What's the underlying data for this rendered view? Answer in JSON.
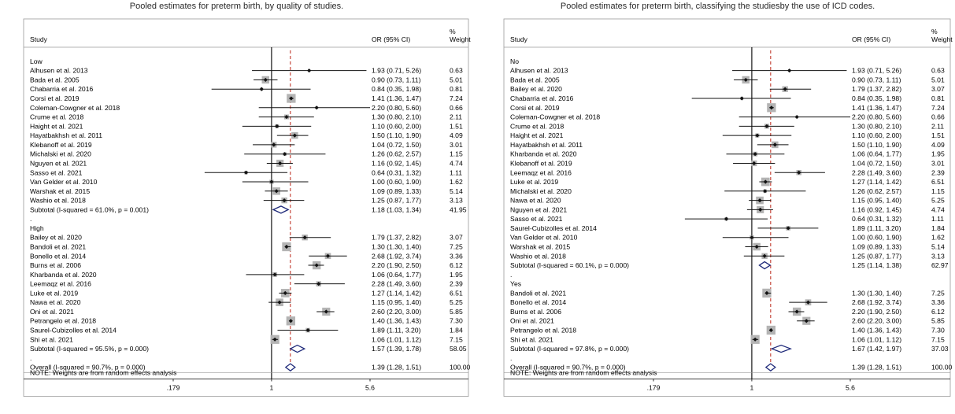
{
  "chart_data": [
    {
      "type": "forest",
      "title": "Pooled estimates for preterm birth, by quality of studies.",
      "columns": {
        "study": "Study",
        "effect": "OR (95% CI)",
        "weight_line1": "%",
        "weight_line2": "Weight"
      },
      "x_scale": "log",
      "x_ticks": [
        {
          "value": 0.179,
          "label": ".179"
        },
        {
          "value": 1,
          "label": "1"
        },
        {
          "value": 5.6,
          "label": "5.6"
        }
      ],
      "xlim": [
        0.179,
        5.6
      ],
      "reference_line": 1,
      "pooled_line": 1.39,
      "note": "NOTE: Weights are from random effects analysis",
      "rows": [
        {
          "kind": "group",
          "label": "Low"
        },
        {
          "kind": "study",
          "label": "Alhusen et al. 2013",
          "or": 1.93,
          "lo": 0.71,
          "hi": 5.26,
          "text": "1.93 (0.71, 5.26)",
          "weight": 0.63,
          "wtext": "0.63"
        },
        {
          "kind": "study",
          "label": "Bada et al. 2005",
          "or": 0.9,
          "lo": 0.73,
          "hi": 1.11,
          "text": "0.90 (0.73, 1.11)",
          "weight": 5.01,
          "wtext": "5.01"
        },
        {
          "kind": "study",
          "label": "Chabarria et al. 2016",
          "or": 0.84,
          "lo": 0.35,
          "hi": 1.98,
          "text": "0.84 (0.35, 1.98)",
          "weight": 0.81,
          "wtext": "0.81"
        },
        {
          "kind": "study",
          "label": "Corsi et al. 2019",
          "or": 1.41,
          "lo": 1.36,
          "hi": 1.47,
          "text": "1.41 (1.36, 1.47)",
          "weight": 7.24,
          "wtext": "7.24"
        },
        {
          "kind": "study",
          "label": "Coleman-Cowgner et al. 2018",
          "or": 2.2,
          "lo": 0.8,
          "hi": 5.6,
          "text": "2.20 (0.80, 5.60)",
          "weight": 0.66,
          "wtext": "0.66"
        },
        {
          "kind": "study",
          "label": "Crume et al. 2018",
          "or": 1.3,
          "lo": 0.8,
          "hi": 2.1,
          "text": "1.30 (0.80, 2.10)",
          "weight": 2.11,
          "wtext": "2.11"
        },
        {
          "kind": "study",
          "label": "Haight et al. 2021",
          "or": 1.1,
          "lo": 0.6,
          "hi": 2.0,
          "text": "1.10 (0.60, 2.00)",
          "weight": 1.51,
          "wtext": "1.51"
        },
        {
          "kind": "study",
          "label": "Hayatbakhsh et al. 2011",
          "or": 1.5,
          "lo": 1.1,
          "hi": 1.9,
          "text": "1.50 (1.10, 1.90)",
          "weight": 4.09,
          "wtext": "4.09"
        },
        {
          "kind": "study",
          "label": "Klebanoff et al. 2019",
          "or": 1.04,
          "lo": 0.72,
          "hi": 1.5,
          "text": "1.04 (0.72, 1.50)",
          "weight": 3.01,
          "wtext": "3.01"
        },
        {
          "kind": "study",
          "label": "Michalski et al. 2020",
          "or": 1.26,
          "lo": 0.62,
          "hi": 2.57,
          "text": "1.26 (0.62, 2.57)",
          "weight": 1.15,
          "wtext": "1.15"
        },
        {
          "kind": "study",
          "label": "Nguyen et al. 2021",
          "or": 1.16,
          "lo": 0.92,
          "hi": 1.45,
          "text": "1.16 (0.92, 1.45)",
          "weight": 4.74,
          "wtext": "4.74"
        },
        {
          "kind": "study",
          "label": "Sasso et al. 2021",
          "or": 0.64,
          "lo": 0.31,
          "hi": 1.32,
          "text": "0.64 (0.31, 1.32)",
          "weight": 1.11,
          "wtext": "1.11"
        },
        {
          "kind": "study",
          "label": "Van Gelder et al. 2010",
          "or": 1.0,
          "lo": 0.6,
          "hi": 1.9,
          "text": "1.00 (0.60, 1.90)",
          "weight": 1.62,
          "wtext": "1.62"
        },
        {
          "kind": "study",
          "label": "Warshak et al. 2015",
          "or": 1.09,
          "lo": 0.89,
          "hi": 1.33,
          "text": "1.09 (0.89, 1.33)",
          "weight": 5.14,
          "wtext": "5.14"
        },
        {
          "kind": "study",
          "label": "Washio et al. 2018",
          "or": 1.25,
          "lo": 0.87,
          "hi": 1.77,
          "text": "1.25 (0.87, 1.77)",
          "weight": 3.13,
          "wtext": "3.13"
        },
        {
          "kind": "subtotal",
          "label": "Subtotal  (I-squared = 61.0%, p = 0.001)",
          "or": 1.18,
          "lo": 1.03,
          "hi": 1.34,
          "text": "1.18 (1.03, 1.34)",
          "wtext": "41.95"
        },
        {
          "kind": "dot",
          "label": "."
        },
        {
          "kind": "group",
          "label": "High"
        },
        {
          "kind": "study",
          "label": "Bailey et al. 2020",
          "or": 1.79,
          "lo": 1.37,
          "hi": 2.82,
          "text": "1.79 (1.37, 2.82)",
          "weight": 3.07,
          "wtext": "3.07"
        },
        {
          "kind": "study",
          "label": "Bandoli et al. 2021",
          "or": 1.3,
          "lo": 1.3,
          "hi": 1.4,
          "text": "1.30 (1.30, 1.40)",
          "weight": 7.25,
          "wtext": "7.25"
        },
        {
          "kind": "study",
          "label": "Bonello et al. 2014",
          "or": 2.68,
          "lo": 1.92,
          "hi": 3.74,
          "text": "2.68 (1.92, 3.74)",
          "weight": 3.36,
          "wtext": "3.36"
        },
        {
          "kind": "study",
          "label": "Burns et al. 2006",
          "or": 2.2,
          "lo": 1.9,
          "hi": 2.5,
          "text": "2.20 (1.90, 2.50)",
          "weight": 6.12,
          "wtext": "6.12"
        },
        {
          "kind": "study",
          "label": "Kharbanda  et al. 2020",
          "or": 1.06,
          "lo": 0.64,
          "hi": 1.77,
          "text": "1.06 (0.64, 1.77)",
          "weight": 1.95,
          "wtext": "1.95"
        },
        {
          "kind": "study",
          "label": "Leemaqz et al. 2016",
          "or": 2.28,
          "lo": 1.49,
          "hi": 3.6,
          "text": "2.28 (1.49, 3.60)",
          "weight": 2.39,
          "wtext": "2.39"
        },
        {
          "kind": "study",
          "label": "Luke et al. 2019",
          "or": 1.27,
          "lo": 1.14,
          "hi": 1.42,
          "text": "1.27 (1.14, 1.42)",
          "weight": 6.51,
          "wtext": "6.51"
        },
        {
          "kind": "study",
          "label": "Nawa et al. 2020",
          "or": 1.15,
          "lo": 0.95,
          "hi": 1.4,
          "text": "1.15 (0.95, 1.40)",
          "weight": 5.25,
          "wtext": "5.25"
        },
        {
          "kind": "study",
          "label": "Oni et al. 2021",
          "or": 2.6,
          "lo": 2.2,
          "hi": 3.0,
          "text": "2.60 (2.20, 3.00)",
          "weight": 5.85,
          "wtext": "5.85"
        },
        {
          "kind": "study",
          "label": "Petrangelo et al. 2018",
          "or": 1.4,
          "lo": 1.36,
          "hi": 1.43,
          "text": "1.40 (1.36, 1.43)",
          "weight": 7.3,
          "wtext": "7.30"
        },
        {
          "kind": "study",
          "label": "Saurel-Cubizolles et al. 2014",
          "or": 1.89,
          "lo": 1.11,
          "hi": 3.2,
          "text": "1.89 (1.11, 3.20)",
          "weight": 1.84,
          "wtext": "1.84"
        },
        {
          "kind": "study",
          "label": "Shi et al. 2021",
          "or": 1.06,
          "lo": 1.01,
          "hi": 1.12,
          "text": "1.06 (1.01, 1.12)",
          "weight": 7.15,
          "wtext": "7.15"
        },
        {
          "kind": "subtotal",
          "label": "Subtotal  (I-squared = 95.5%, p = 0.000)",
          "or": 1.57,
          "lo": 1.39,
          "hi": 1.78,
          "text": "1.57 (1.39, 1.78)",
          "wtext": "58.05"
        },
        {
          "kind": "dot",
          "label": "."
        },
        {
          "kind": "overall",
          "label": "Overall  (I-squared = 90.7%, p = 0.000)",
          "or": 1.39,
          "lo": 1.28,
          "hi": 1.51,
          "text": "1.39 (1.28, 1.51)",
          "wtext": "100.00"
        }
      ]
    },
    {
      "type": "forest",
      "title": "Pooled estimates for preterm birth, classifying the studiesby the use of ICD codes.",
      "columns": {
        "study": "Study",
        "effect": "OR (95% CI)",
        "weight_line1": "%",
        "weight_line2": "Weight"
      },
      "x_scale": "log",
      "x_ticks": [
        {
          "value": 0.179,
          "label": ".179"
        },
        {
          "value": 1,
          "label": "1"
        },
        {
          "value": 5.6,
          "label": "5.6"
        }
      ],
      "xlim": [
        0.179,
        5.6
      ],
      "reference_line": 1,
      "pooled_line": 1.39,
      "note": "NOTE: Weights are from random effects analysis",
      "rows": [
        {
          "kind": "group",
          "label": "No"
        },
        {
          "kind": "study",
          "label": "Alhusen et al. 2013",
          "or": 1.93,
          "lo": 0.71,
          "hi": 5.26,
          "text": "1.93 (0.71, 5.26)",
          "weight": 0.63,
          "wtext": "0.63"
        },
        {
          "kind": "study",
          "label": "Bada et al. 2005",
          "or": 0.9,
          "lo": 0.73,
          "hi": 1.11,
          "text": "0.90 (0.73, 1.11)",
          "weight": 5.01,
          "wtext": "5.01"
        },
        {
          "kind": "study",
          "label": "Bailey et al. 2020",
          "or": 1.79,
          "lo": 1.37,
          "hi": 2.82,
          "text": "1.79 (1.37, 2.82)",
          "weight": 3.07,
          "wtext": "3.07"
        },
        {
          "kind": "study",
          "label": "Chabarria et al. 2016",
          "or": 0.84,
          "lo": 0.35,
          "hi": 1.98,
          "text": "0.84 (0.35, 1.98)",
          "weight": 0.81,
          "wtext": "0.81"
        },
        {
          "kind": "study",
          "label": "Corsi et al. 2019",
          "or": 1.41,
          "lo": 1.36,
          "hi": 1.47,
          "text": "1.41 (1.36, 1.47)",
          "weight": 7.24,
          "wtext": "7.24"
        },
        {
          "kind": "study",
          "label": "Coleman-Cowgner et al. 2018",
          "or": 2.2,
          "lo": 0.8,
          "hi": 5.6,
          "text": "2.20 (0.80, 5.60)",
          "weight": 0.66,
          "wtext": "0.66"
        },
        {
          "kind": "study",
          "label": "Crume et al. 2018",
          "or": 1.3,
          "lo": 0.8,
          "hi": 2.1,
          "text": "1.30 (0.80, 2.10)",
          "weight": 2.11,
          "wtext": "2.11"
        },
        {
          "kind": "study",
          "label": "Haight et al. 2021",
          "or": 1.1,
          "lo": 0.6,
          "hi": 2.0,
          "text": "1.10 (0.60, 2.00)",
          "weight": 1.51,
          "wtext": "1.51"
        },
        {
          "kind": "study",
          "label": "Hayatbakhsh et al. 2011",
          "or": 1.5,
          "lo": 1.1,
          "hi": 1.9,
          "text": "1.50 (1.10, 1.90)",
          "weight": 4.09,
          "wtext": "4.09"
        },
        {
          "kind": "study",
          "label": "Kharbanda  et al. 2020",
          "or": 1.06,
          "lo": 0.64,
          "hi": 1.77,
          "text": "1.06 (0.64, 1.77)",
          "weight": 1.95,
          "wtext": "1.95"
        },
        {
          "kind": "study",
          "label": "Klebanoff et al. 2019",
          "or": 1.04,
          "lo": 0.72,
          "hi": 1.5,
          "text": "1.04 (0.72, 1.50)",
          "weight": 3.01,
          "wtext": "3.01"
        },
        {
          "kind": "study",
          "label": "Leemaqz et al. 2016",
          "or": 2.28,
          "lo": 1.49,
          "hi": 3.6,
          "text": "2.28 (1.49, 3.60)",
          "weight": 2.39,
          "wtext": "2.39"
        },
        {
          "kind": "study",
          "label": "Luke et al. 2019",
          "or": 1.27,
          "lo": 1.14,
          "hi": 1.42,
          "text": "1.27 (1.14, 1.42)",
          "weight": 6.51,
          "wtext": "6.51"
        },
        {
          "kind": "study",
          "label": "Michalski et al. 2020",
          "or": 1.26,
          "lo": 0.62,
          "hi": 2.57,
          "text": "1.26 (0.62, 2.57)",
          "weight": 1.15,
          "wtext": "1.15"
        },
        {
          "kind": "study",
          "label": "Nawa et al. 2020",
          "or": 1.15,
          "lo": 0.95,
          "hi": 1.4,
          "text": "1.15 (0.95, 1.40)",
          "weight": 5.25,
          "wtext": "5.25"
        },
        {
          "kind": "study",
          "label": "Nguyen et al. 2021",
          "or": 1.16,
          "lo": 0.92,
          "hi": 1.45,
          "text": "1.16 (0.92, 1.45)",
          "weight": 4.74,
          "wtext": "4.74"
        },
        {
          "kind": "study",
          "label": "Sasso et al. 2021",
          "or": 0.64,
          "lo": 0.31,
          "hi": 1.32,
          "text": "0.64 (0.31, 1.32)",
          "weight": 1.11,
          "wtext": "1.11"
        },
        {
          "kind": "study",
          "label": "Saurel-Cubizolles et al. 2014",
          "or": 1.89,
          "lo": 1.11,
          "hi": 3.2,
          "text": "1.89 (1.11, 3.20)",
          "weight": 1.84,
          "wtext": "1.84"
        },
        {
          "kind": "study",
          "label": "Van Gelder et al. 2010",
          "or": 1.0,
          "lo": 0.6,
          "hi": 1.9,
          "text": "1.00 (0.60, 1.90)",
          "weight": 1.62,
          "wtext": "1.62"
        },
        {
          "kind": "study",
          "label": "Warshak et al. 2015",
          "or": 1.09,
          "lo": 0.89,
          "hi": 1.33,
          "text": "1.09 (0.89, 1.33)",
          "weight": 5.14,
          "wtext": "5.14"
        },
        {
          "kind": "study",
          "label": "Washio et al. 2018",
          "or": 1.25,
          "lo": 0.87,
          "hi": 1.77,
          "text": "1.25 (0.87, 1.77)",
          "weight": 3.13,
          "wtext": "3.13"
        },
        {
          "kind": "subtotal",
          "label": "Subtotal  (I-squared = 60.1%, p = 0.000)",
          "or": 1.25,
          "lo": 1.14,
          "hi": 1.38,
          "text": "1.25 (1.14, 1.38)",
          "wtext": "62.97"
        },
        {
          "kind": "dot",
          "label": "."
        },
        {
          "kind": "group",
          "label": "Yes"
        },
        {
          "kind": "study",
          "label": "Bandoli et al. 2021",
          "or": 1.3,
          "lo": 1.3,
          "hi": 1.4,
          "text": "1.30 (1.30, 1.40)",
          "weight": 7.25,
          "wtext": "7.25"
        },
        {
          "kind": "study",
          "label": "Bonello et al. 2014",
          "or": 2.68,
          "lo": 1.92,
          "hi": 3.74,
          "text": "2.68 (1.92, 3.74)",
          "weight": 3.36,
          "wtext": "3.36"
        },
        {
          "kind": "study",
          "label": "Burns et al. 2006",
          "or": 2.2,
          "lo": 1.9,
          "hi": 2.5,
          "text": "2.20 (1.90, 2.50)",
          "weight": 6.12,
          "wtext": "6.12"
        },
        {
          "kind": "study",
          "label": "Oni et al. 2021",
          "or": 2.6,
          "lo": 2.2,
          "hi": 3.0,
          "text": "2.60 (2.20, 3.00)",
          "weight": 5.85,
          "wtext": "5.85"
        },
        {
          "kind": "study",
          "label": "Petrangelo et al. 2018",
          "or": 1.4,
          "lo": 1.36,
          "hi": 1.43,
          "text": "1.40 (1.36, 1.43)",
          "weight": 7.3,
          "wtext": "7.30"
        },
        {
          "kind": "study",
          "label": "Shi et al. 2021",
          "or": 1.06,
          "lo": 1.01,
          "hi": 1.12,
          "text": "1.06 (1.01, 1.12)",
          "weight": 7.15,
          "wtext": "7.15"
        },
        {
          "kind": "subtotal",
          "label": "Subtotal  (I-squared = 97.8%, p = 0.000)",
          "or": 1.67,
          "lo": 1.42,
          "hi": 1.97,
          "text": "1.67 (1.42, 1.97)",
          "wtext": "37.03"
        },
        {
          "kind": "dot",
          "label": "."
        },
        {
          "kind": "overall",
          "label": "Overall  (I-squared = 90.7%, p = 0.000)",
          "or": 1.39,
          "lo": 1.28,
          "hi": 1.51,
          "text": "1.39 (1.28, 1.51)",
          "wtext": "100.00"
        }
      ]
    }
  ],
  "colors": {
    "line": "#111111",
    "square": "#b4b4b4",
    "diamond": "#1f2a7a",
    "pooled": "#c0392b",
    "frame": "#9a9a9a"
  }
}
